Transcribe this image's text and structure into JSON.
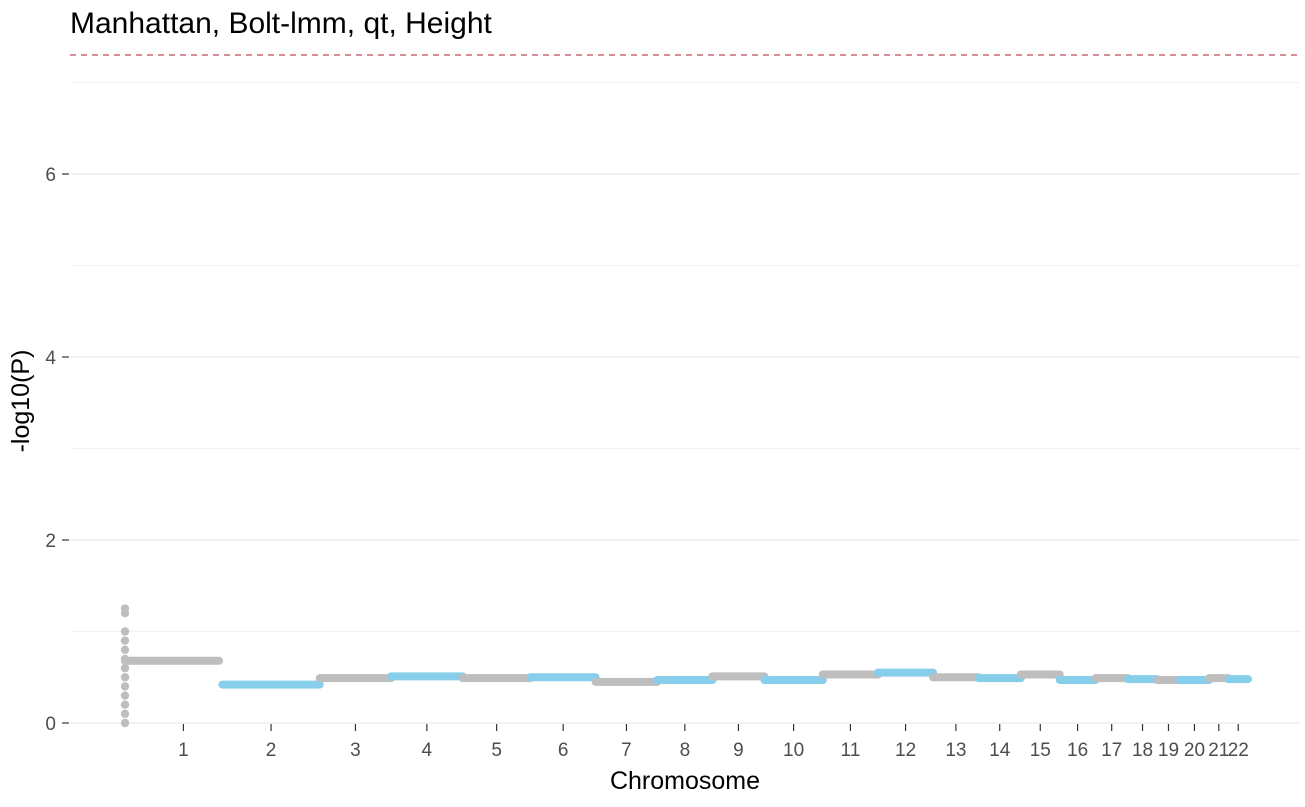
{
  "chart_data": {
    "type": "scatter",
    "title": "Manhattan, Bolt-lmm, qt, Height",
    "xlabel": "Chromosome",
    "ylabel": "-log10(P)",
    "ylim": [
      0,
      7.5
    ],
    "yticks": [
      0,
      2,
      4,
      6
    ],
    "grid": true,
    "legend": "none",
    "significance_line": 7.3,
    "colors": {
      "odd": "#bebebe",
      "even": "#87ceeb",
      "threshold": "#b2182b",
      "grid": "#ebebeb"
    },
    "series": [
      {
        "chromosome": "1",
        "x_start": 0.0,
        "x_end": 0.145,
        "neg_log10_p": 0.68,
        "color": "odd"
      },
      {
        "chromosome": "2",
        "x_start": 0.15,
        "x_end": 0.3,
        "neg_log10_p": 0.42,
        "color": "even"
      },
      {
        "chromosome": "3",
        "x_start": 0.3,
        "x_end": 0.41,
        "neg_log10_p": 0.49,
        "color": "odd"
      },
      {
        "chromosome": "4",
        "x_start": 0.41,
        "x_end": 0.52,
        "neg_log10_p": 0.51,
        "color": "even"
      },
      {
        "chromosome": "5",
        "x_start": 0.52,
        "x_end": 0.625,
        "neg_log10_p": 0.49,
        "color": "odd"
      },
      {
        "chromosome": "6",
        "x_start": 0.625,
        "x_end": 0.725,
        "neg_log10_p": 0.5,
        "color": "even"
      },
      {
        "chromosome": "7",
        "x_start": 0.725,
        "x_end": 0.82,
        "neg_log10_p": 0.45,
        "color": "odd"
      },
      {
        "chromosome": "8",
        "x_start": 0.82,
        "x_end": 0.905,
        "neg_log10_p": 0.47,
        "color": "even"
      },
      {
        "chromosome": "9",
        "x_start": 0.905,
        "x_end": 0.985,
        "neg_log10_p": 0.51,
        "color": "odd"
      },
      {
        "chromosome": "10",
        "x_start": 0.985,
        "x_end": 1.075,
        "neg_log10_p": 0.47,
        "color": "even"
      },
      {
        "chromosome": "11",
        "x_start": 1.075,
        "x_end": 1.16,
        "neg_log10_p": 0.53,
        "color": "odd"
      },
      {
        "chromosome": "12",
        "x_start": 1.16,
        "x_end": 1.245,
        "neg_log10_p": 0.55,
        "color": "even"
      },
      {
        "chromosome": "13",
        "x_start": 1.245,
        "x_end": 1.315,
        "neg_log10_p": 0.5,
        "color": "odd"
      },
      {
        "chromosome": "14",
        "x_start": 1.315,
        "x_end": 1.38,
        "neg_log10_p": 0.49,
        "color": "even"
      },
      {
        "chromosome": "15",
        "x_start": 1.38,
        "x_end": 1.44,
        "neg_log10_p": 0.53,
        "color": "odd"
      },
      {
        "chromosome": "16",
        "x_start": 1.44,
        "x_end": 1.495,
        "neg_log10_p": 0.47,
        "color": "even"
      },
      {
        "chromosome": "17",
        "x_start": 1.495,
        "x_end": 1.545,
        "neg_log10_p": 0.49,
        "color": "odd"
      },
      {
        "chromosome": "18",
        "x_start": 1.545,
        "x_end": 1.59,
        "neg_log10_p": 0.48,
        "color": "even"
      },
      {
        "chromosome": "19",
        "x_start": 1.59,
        "x_end": 1.625,
        "neg_log10_p": 0.47,
        "color": "odd"
      },
      {
        "chromosome": "20",
        "x_start": 1.625,
        "x_end": 1.67,
        "neg_log10_p": 0.47,
        "color": "even"
      },
      {
        "chromosome": "21",
        "x_start": 1.67,
        "x_end": 1.7,
        "neg_log10_p": 0.49,
        "color": "odd"
      },
      {
        "chromosome": "22",
        "x_start": 1.7,
        "x_end": 1.73,
        "neg_log10_p": 0.48,
        "color": "even"
      }
    ],
    "chr1_start_column": [
      0.0,
      0.1,
      0.2,
      0.3,
      0.4,
      0.5,
      0.6,
      0.7,
      0.8,
      0.9,
      1.0,
      1.2,
      1.25
    ]
  }
}
